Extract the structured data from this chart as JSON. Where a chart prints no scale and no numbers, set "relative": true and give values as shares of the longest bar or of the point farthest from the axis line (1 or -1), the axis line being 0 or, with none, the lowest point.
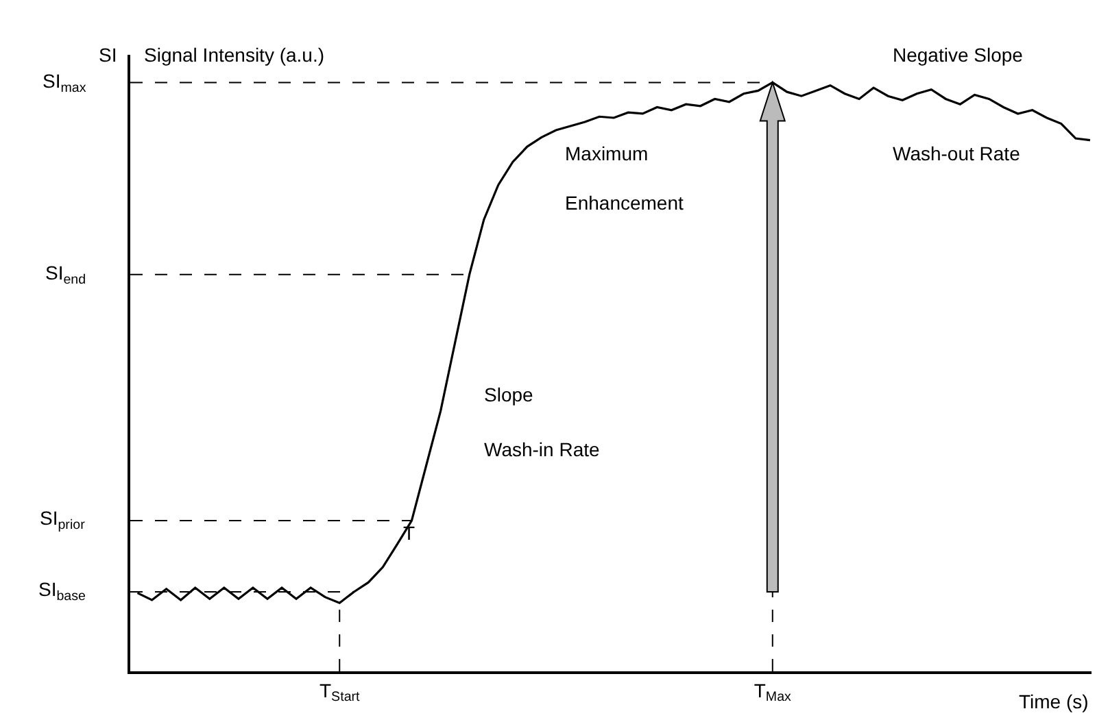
{
  "chart_data": {
    "type": "line",
    "relative": true,
    "ylabel": "Signal Intensity (a.u.)",
    "xlabel": "Time (s)",
    "categories": [
      null,
      null,
      null,
      null,
      null,
      null,
      null,
      null,
      null,
      null,
      null,
      null,
      null,
      null,
      "T$_{Start}$",
      null,
      null,
      null,
      null,
      null,
      null,
      null,
      null,
      null,
      null,
      null,
      null,
      null,
      null,
      null,
      null,
      null,
      null,
      null,
      null,
      null,
      null,
      null,
      null,
      null,
      null,
      null,
      null,
      null,
      "T$_{Max}$",
      null,
      null,
      null,
      null,
      null,
      null,
      null,
      null,
      null,
      null,
      null,
      null,
      null,
      null,
      null,
      null,
      null,
      null,
      null,
      null,
      null,
      null
    ],
    "series": [
      {
        "color": "#000000",
        "values": [
          0.133,
          0.121,
          0.14,
          0.121,
          0.142,
          0.123,
          0.142,
          0.123,
          0.142,
          0.123,
          0.142,
          0.123,
          0.142,
          0.126,
          0.116,
          0.135,
          0.151,
          0.177,
          0.216,
          0.256,
          0.349,
          0.442,
          0.558,
          0.674,
          0.767,
          0.826,
          0.865,
          0.891,
          0.907,
          0.919,
          0.926,
          0.933,
          0.942,
          0.94,
          0.949,
          0.947,
          0.958,
          0.953,
          0.963,
          0.96,
          0.972,
          0.967,
          0.981,
          0.986,
          1,
          0.984,
          0.977,
          0.986,
          0.995,
          0.981,
          0.972,
          0.991,
          0.977,
          0.97,
          0.981,
          0.988,
          0.972,
          0.963,
          0.979,
          0.972,
          0.958,
          0.947,
          0.953,
          0.94,
          0.93,
          0.905,
          0.902
        ]
      }
    ],
    "ref_lines": [
      {
        "axis": "y",
        "value": 1,
        "label": "SI$_{max}$",
        "line_style": "dashed"
      },
      {
        "axis": "y",
        "value": 0.674,
        "label": "SI$_{end}$",
        "line_style": "dashed"
      },
      {
        "axis": "y",
        "value": 0.256,
        "label": "SI$_{prior}$",
        "line_style": "dashed"
      },
      {
        "axis": "y",
        "value": 0.135,
        "label": "SI$_{base}$",
        "line_style": "dashed"
      },
      {
        "axis": "x",
        "value": "T$_{Start}$",
        "line_style": "dashed"
      },
      {
        "axis": "x",
        "value": "T$_{Max}$",
        "line_style": "dashed"
      }
    ],
    "annotations": [
      "SI",
      "Maximum",
      "Enhancement",
      "Slope",
      "Wash-in Rate",
      "Negative Slope",
      "Wash-out Rate",
      "T"
    ],
    "grid": false,
    "marker": "none",
    "line_style": "solid"
  }
}
